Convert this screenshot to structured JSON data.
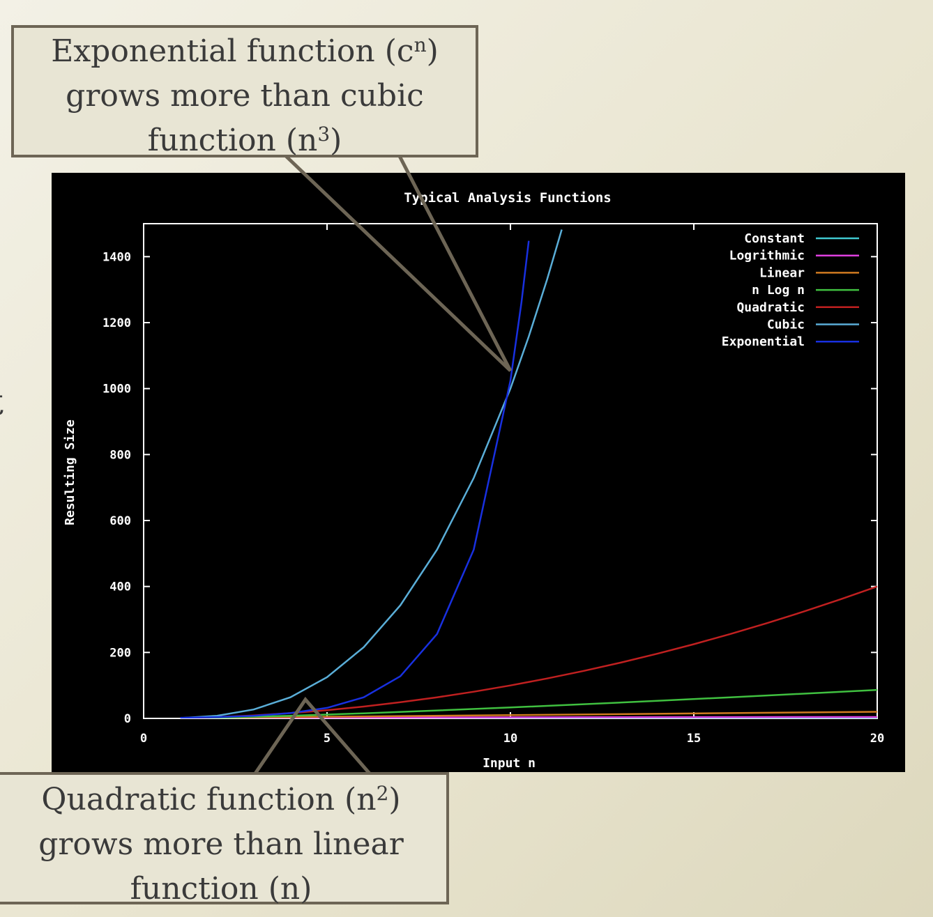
{
  "slide": {
    "edge_glyph": "t"
  },
  "colors": {
    "background": "#000000",
    "frame": "#ffffff",
    "callout_fill": "#e8e5d4",
    "callout_border": "#6d6555",
    "callout_text": "#3a3a3a"
  },
  "callouts": {
    "exponential": {
      "line1_pre": "Exponential function (c",
      "line1_sup": "n",
      "line1_post": ")",
      "line2": "grows more than cubic",
      "line3_pre": "function (n",
      "line3_sup": "3",
      "line3_post": ")"
    },
    "quadratic": {
      "line1_pre": "Quadratic function (n",
      "line1_sup": "2",
      "line1_post": ")",
      "line2": "grows more than linear",
      "line3": "function (n)"
    }
  },
  "chart_data": {
    "type": "line",
    "title": "Typical Analysis Functions",
    "xlabel": "Input n",
    "ylabel": "Resulting Size",
    "xlim": [
      0,
      20
    ],
    "ylim": [
      0,
      1500
    ],
    "xticks": [
      0,
      5,
      10,
      15,
      20
    ],
    "yticks": [
      0,
      200,
      400,
      600,
      800,
      1000,
      1200,
      1400
    ],
    "grid": false,
    "legend_position": "top-right",
    "series": [
      {
        "name": "Constant",
        "color": "#40c8d0",
        "x": [
          1,
          20
        ],
        "y": [
          1,
          1
        ]
      },
      {
        "name": "Logrithmic",
        "color": "#e040e0",
        "x": [
          1,
          2,
          4,
          8,
          12,
          16,
          20
        ],
        "y": [
          0,
          1,
          2,
          3,
          3.58,
          4,
          4.32
        ]
      },
      {
        "name": "Linear",
        "color": "#d07a20",
        "x": [
          1,
          20
        ],
        "y": [
          1,
          20
        ]
      },
      {
        "name": "n Log n",
        "color": "#40c040",
        "x": [
          1,
          2,
          4,
          6,
          8,
          10,
          12,
          14,
          16,
          18,
          20
        ],
        "y": [
          0,
          2,
          8,
          15.5,
          24,
          33.2,
          43,
          53.3,
          64,
          75,
          86.4
        ]
      },
      {
        "name": "Quadratic",
        "color": "#c02020",
        "x": [
          1,
          2,
          3,
          4,
          5,
          6,
          7,
          8,
          9,
          10,
          11,
          12,
          13,
          14,
          15,
          16,
          17,
          18,
          19,
          20
        ],
        "y": [
          1,
          4,
          9,
          16,
          25,
          36,
          49,
          64,
          81,
          100,
          121,
          144,
          169,
          196,
          225,
          256,
          289,
          324,
          361,
          400
        ]
      },
      {
        "name": "Cubic",
        "color": "#5aaed8",
        "x": [
          1,
          2,
          3,
          4,
          5,
          6,
          7,
          8,
          9,
          10,
          10.5,
          11,
          11.4
        ],
        "y": [
          1,
          8,
          27,
          64,
          125,
          216,
          343,
          512,
          729,
          1000,
          1158,
          1331,
          1482
        ]
      },
      {
        "name": "Exponential",
        "color": "#1830e0",
        "x": [
          1,
          2,
          3,
          4,
          5,
          6,
          7,
          8,
          9,
          10,
          10.3,
          10.5
        ],
        "y": [
          2,
          4,
          8,
          16,
          32,
          64,
          128,
          256,
          512,
          1024,
          1261,
          1448
        ]
      }
    ]
  }
}
